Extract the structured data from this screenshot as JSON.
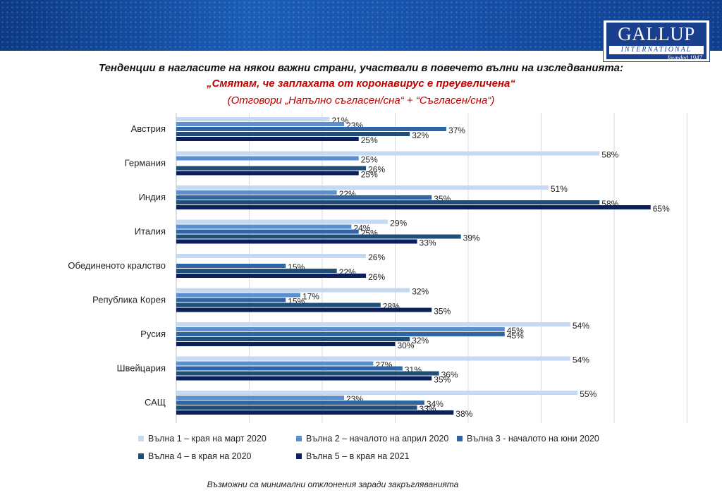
{
  "header": {
    "logo_text": "GALLUP",
    "logo_sub": "INTERNATIONAL",
    "logo_founded": "founded 1947"
  },
  "chart_data": {
    "type": "bar",
    "orientation": "horizontal",
    "title": "Тенденции в нагласите на някои важни страни, участвали в повечето вълни на изследванията:",
    "subtitle": "„Смятам, че заплахата от коронавирус е преувеличена“",
    "subtitle2": "(Отговори „Напълно съгласен/сна“ + “Съгласен/сна“)",
    "categories": [
      "Австрия",
      "Германия",
      "Индия",
      "Италия",
      "Обединеното кралство",
      "Република Корея",
      "Русия",
      "Швейцария",
      "САЩ"
    ],
    "series": [
      {
        "name": "Вълна 1 – края на март 2020",
        "color": "#c5d9f1",
        "values": [
          21,
          58,
          51,
          29,
          26,
          32,
          54,
          54,
          55
        ]
      },
      {
        "name": "Вълна 2 – началото на април 2020",
        "color": "#5b8fcd",
        "values": [
          23,
          25,
          22,
          24,
          null,
          17,
          45,
          27,
          23
        ]
      },
      {
        "name": "Вълна 3 - началото на юни 2020",
        "color": "#2f65a7",
        "values": [
          37,
          null,
          35,
          25,
          15,
          15,
          45,
          31,
          34
        ]
      },
      {
        "name": "Вълна 4 – в края на 2020",
        "color": "#1f4e79",
        "values": [
          32,
          26,
          58,
          39,
          22,
          28,
          32,
          36,
          33
        ]
      },
      {
        "name": "Вълна 5 – в края на 2021",
        "color": "#0a1f5c",
        "values": [
          25,
          25,
          65,
          33,
          26,
          35,
          30,
          35,
          38
        ]
      }
    ],
    "value_suffix": "%",
    "xlim": [
      0,
      70
    ],
    "grid": true,
    "legend_position": "bottom"
  },
  "footnote": "Възможни са минимални отклонения заради закръгляванията"
}
